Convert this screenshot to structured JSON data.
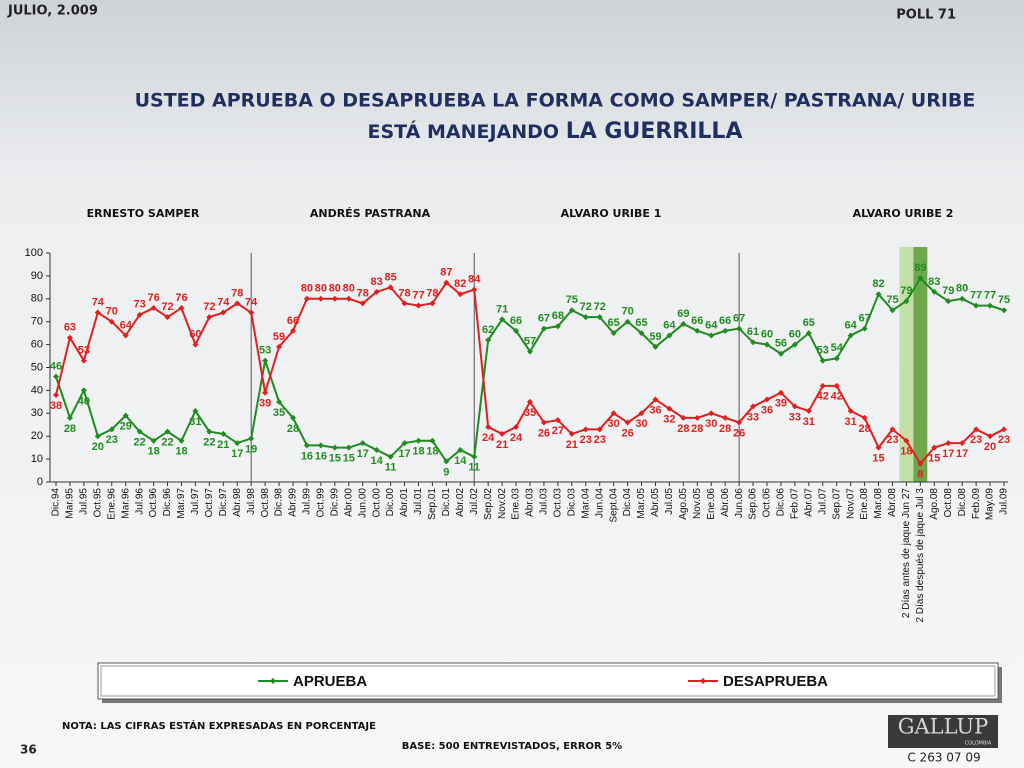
{
  "header": {
    "date": "JULIO, 2.009",
    "poll": "POLL 71"
  },
  "chart_data": {
    "type": "line",
    "title_parts": [
      "USTED APRUEBA O DESAPRUEBA LA FORMA COMO SAMPER/ PASTRANA/ URIBE",
      "ESTÁ MANEJANDO ",
      "LA GUERRILLA"
    ],
    "periods": [
      "ERNESTO SAMPER",
      "ANDRÉS  PASTRANA",
      "ALVARO URIBE 1",
      "ALVARO URIBE 2"
    ],
    "categories": [
      "Dic.94",
      "Mar.95",
      "Jul.95",
      "Oct.95",
      "Ene.96",
      "Mar.96",
      "Jul.96",
      "Oct.96",
      "Dic.96",
      "Mar.97",
      "Jul.97",
      "Oct.97",
      "Dic.97",
      "Abr.98",
      "Jul.98",
      "Oct.98",
      "Dic.98",
      "Abr.99",
      "Jul.99",
      "Oct.99",
      "Dic.99",
      "Abr.00",
      "Jun.00",
      "Oct.00",
      "Dic.00",
      "Abr.01",
      "Jul.01",
      "Sep.01",
      "Dic.01",
      "Abr.02",
      "Jul.02",
      "Sep.02",
      "Nov.02",
      "Ene.03",
      "Abr.03",
      "Jul.03",
      "Oct.03",
      "Dic.03",
      "Mar.04",
      "Jun.04",
      "Sept.04",
      "Dic.04",
      "Mar.05",
      "Abr.05",
      "Jul.05",
      "Ago.05",
      "Nov.05",
      "Ene.06",
      "Abr.06",
      "Jun.06",
      "Sep.06",
      "Oct.06",
      "Dic.06",
      "Feb.07",
      "Abr.07",
      "Jul.07",
      "Sep.07",
      "Nov.07",
      "Ene.08",
      "Mar.08",
      "Abr.08",
      "2 Días antes de jaque Jun 27",
      "2 Días después de jaque Jul 3",
      "Ago.08",
      "Oct.08",
      "Dic.08",
      "Feb.09",
      "May.09",
      "Jul.09"
    ],
    "series": [
      {
        "name": "APRUEBA",
        "color": "#1e8c1e",
        "values": [
          46,
          28,
          40,
          20,
          23,
          29,
          22,
          18,
          22,
          18,
          31,
          22,
          21,
          17,
          19,
          53,
          35,
          28,
          16,
          16,
          15,
          15,
          17,
          14,
          11,
          17,
          18,
          18,
          9,
          14,
          11,
          62,
          71,
          66,
          57,
          67,
          68,
          75,
          72,
          72,
          65,
          70,
          65,
          59,
          64,
          69,
          66,
          64,
          66,
          67,
          61,
          60,
          56,
          60,
          65,
          53,
          54,
          64,
          67,
          82,
          75,
          79,
          89,
          83,
          79,
          80,
          77,
          77,
          75
        ]
      },
      {
        "name": "DESAPRUEBA",
        "color": "#e0201e",
        "values": [
          38,
          63,
          53,
          74,
          70,
          64,
          73,
          76,
          72,
          76,
          60,
          72,
          74,
          78,
          74,
          39,
          59,
          66,
          80,
          80,
          80,
          80,
          78,
          83,
          85,
          78,
          77,
          78,
          87,
          82,
          84,
          24,
          21,
          24,
          35,
          26,
          27,
          21,
          23,
          23,
          30,
          26,
          30,
          36,
          32,
          28,
          28,
          30,
          28,
          26,
          33,
          36,
          39,
          33,
          31,
          42,
          42,
          31,
          28,
          15,
          23,
          18,
          8,
          15,
          17,
          17,
          23,
          20,
          23
        ]
      }
    ],
    "ylim": [
      0,
      100
    ],
    "yticks": [
      0,
      10,
      20,
      30,
      40,
      50,
      60,
      70,
      80,
      90,
      100
    ]
  },
  "footer": {
    "note": "NOTA: LAS CIFRAS ESTÁN EXPRESADAS EN PORCENTAJE",
    "base": "BASE: 500 ENTREVISTADOS, ERROR 5%",
    "page": "36",
    "logo": "GALLUP",
    "logo_sub": "COLOMBIA",
    "code": "C 263 07 09"
  }
}
